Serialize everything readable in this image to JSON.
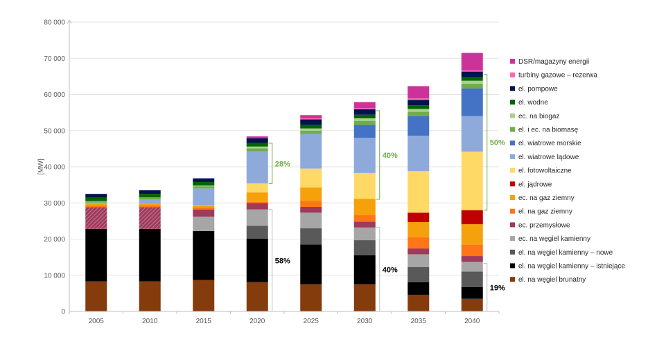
{
  "chart_data": {
    "type": "bar",
    "stacked": true,
    "title": "",
    "xlabel": "",
    "ylabel": "[MW]",
    "ylim": [
      0,
      80000
    ],
    "yticks": [
      "0",
      "10 000",
      "20 000",
      "30 000",
      "40 000",
      "50 000",
      "60 000",
      "70 000",
      "80 000"
    ],
    "grid": true,
    "legend_position": "right",
    "categories": [
      "2005",
      "2010",
      "2015",
      "2020",
      "2025",
      "2030",
      "2035",
      "2040"
    ],
    "series": [
      {
        "name": "el. na węgiel brunatny",
        "color": "#843c0c",
        "values": [
          8300,
          8300,
          8700,
          8100,
          7500,
          7500,
          4600,
          3500
        ]
      },
      {
        "name": "el. na węgiel kamienny – istniejące",
        "color": "#000000",
        "values": [
          14500,
          14500,
          13500,
          12000,
          11000,
          8000,
          3500,
          3200
        ]
      },
      {
        "name": "el. na węgiel kamienny – nowe",
        "color": "#595959",
        "values": [
          0,
          0,
          0,
          3600,
          4500,
          4200,
          4200,
          4300
        ]
      },
      {
        "name": "ec. na węgiel kamienny",
        "color": "#a6a6a6",
        "values": [
          0,
          0,
          4000,
          4500,
          4300,
          3500,
          3500,
          2700
        ]
      },
      {
        "name": "ec. przemysłowe",
        "color": "#9e3a5b",
        "values": [
          6000,
          6000,
          2000,
          1800,
          1600,
          1600,
          1600,
          1600
        ]
      },
      {
        "name": "el. na gaz ziemny",
        "color": "#ff7518",
        "values": [
          500,
          500,
          500,
          300,
          1700,
          1800,
          3100,
          3200
        ]
      },
      {
        "name": "ec. na gaz ziemny",
        "color": "#f5a10c",
        "values": [
          500,
          500,
          500,
          2600,
          3700,
          4500,
          4200,
          5600
        ]
      },
      {
        "name": "el. jądrowe",
        "color": "#c00000",
        "values": [
          0,
          0,
          0,
          0,
          0,
          0,
          2600,
          3900
        ]
      },
      {
        "name": "el. fotowoltaiczne",
        "color": "#ffd966",
        "values": [
          0,
          0,
          100,
          2500,
          5200,
          7200,
          11500,
          16200
        ]
      },
      {
        "name": "el. wiatrowe lądowe",
        "color": "#8eaadb",
        "values": [
          300,
          1200,
          4700,
          8900,
          9600,
          9700,
          9800,
          9800
        ]
      },
      {
        "name": "el. wiatrowe morskie",
        "color": "#4472c4",
        "values": [
          0,
          0,
          0,
          0,
          0,
          3600,
          5400,
          7700
        ]
      },
      {
        "name": "el. i ec. na biomasę",
        "color": "#70ad47",
        "values": [
          300,
          400,
          600,
          800,
          900,
          1100,
          1200,
          1300
        ]
      },
      {
        "name": "ec. na biogaz",
        "color": "#a9d18e",
        "values": [
          100,
          100,
          200,
          500,
          600,
          700,
          800,
          800
        ]
      },
      {
        "name": "el. wodne",
        "color": "#006400",
        "values": [
          1000,
          1000,
          1000,
          1000,
          1000,
          1000,
          1000,
          1000
        ]
      },
      {
        "name": "el. pompowe",
        "color": "#00134d",
        "values": [
          1000,
          1000,
          1000,
          1300,
          1500,
          1500,
          1500,
          1500
        ]
      },
      {
        "name": "turbiny gazowe – rezerwa",
        "color": "#ff66b3",
        "values": [
          0,
          0,
          0,
          0,
          300,
          300,
          400,
          400
        ]
      },
      {
        "name": "DSR/magazyny energii",
        "color": "#cc3399",
        "values": [
          0,
          0,
          0,
          500,
          900,
          1700,
          3400,
          4800
        ]
      }
    ],
    "hatched_series": {
      "name": "ec. przemysłowe",
      "categories": [
        "2005",
        "2010"
      ]
    },
    "annotations": [
      {
        "text": "28%",
        "color": "#70ad47",
        "category": "2020",
        "y_from": 35300,
        "y_to": 46500
      },
      {
        "text": "40%",
        "color": "#70ad47",
        "category": "2030",
        "y_from": 31000,
        "y_to": 55500
      },
      {
        "text": "50%",
        "color": "#70ad47",
        "category": "2040",
        "y_from": 28000,
        "y_to": 65500
      },
      {
        "text": "58%",
        "color": "#000000",
        "category": "2020",
        "y_from": 0,
        "y_to": 28200
      },
      {
        "text": "40%",
        "color": "#000000",
        "category": "2030",
        "y_from": 0,
        "y_to": 23200
      },
      {
        "text": "19%",
        "color": "#000000",
        "category": "2040",
        "y_from": 0,
        "y_to": 13300
      }
    ]
  }
}
